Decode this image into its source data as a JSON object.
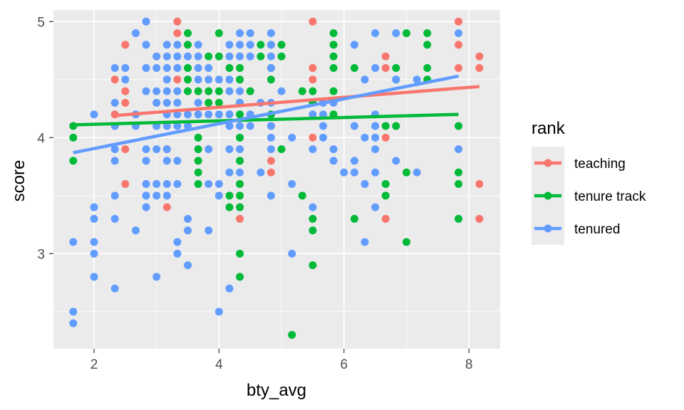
{
  "chart_data": {
    "type": "scatter",
    "xlabel": "bty_avg",
    "ylabel": "score",
    "xlim": [
      1.35,
      8.5
    ],
    "ylim": [
      2.18,
      5.1
    ],
    "x_ticks": [
      2,
      4,
      6,
      8
    ],
    "y_ticks": [
      3,
      4,
      5
    ],
    "grid": true,
    "legend": {
      "title": "rank",
      "position": "right"
    },
    "series": [
      {
        "name": "teaching",
        "color": "#F8766D",
        "points": [
          [
            2.333,
            4.5
          ],
          [
            2.5,
            4.4
          ],
          [
            2.5,
            4.3
          ],
          [
            2.5,
            4.8
          ],
          [
            2.333,
            4.2
          ],
          [
            2.5,
            3.9
          ],
          [
            2.5,
            3.6
          ],
          [
            3.333,
            5.0
          ],
          [
            3.333,
            4.9
          ],
          [
            3.167,
            3.9
          ],
          [
            3.167,
            3.4
          ],
          [
            3.0,
            4.7
          ],
          [
            3.0,
            4.3
          ],
          [
            3.333,
            4.5
          ],
          [
            4.333,
            3.3
          ],
          [
            4.833,
            4.1
          ],
          [
            4.833,
            3.8
          ],
          [
            4.833,
            3.7
          ],
          [
            5.5,
            5.0
          ],
          [
            5.5,
            4.6
          ],
          [
            5.5,
            4.5
          ],
          [
            5.5,
            4.0
          ],
          [
            6.667,
            4.7
          ],
          [
            6.667,
            4.6
          ],
          [
            6.667,
            4.0
          ],
          [
            6.667,
            3.3
          ],
          [
            7.833,
            5.0
          ],
          [
            7.833,
            4.8
          ],
          [
            7.833,
            4.6
          ],
          [
            8.167,
            4.7
          ],
          [
            8.167,
            4.6
          ],
          [
            8.167,
            3.6
          ],
          [
            8.167,
            3.3
          ]
        ],
        "trend": [
          [
            2.333,
            4.19
          ],
          [
            8.167,
            4.44
          ]
        ]
      },
      {
        "name": "tenure track",
        "color": "#00BA38",
        "points": [
          [
            1.667,
            4.1
          ],
          [
            1.667,
            4.0
          ],
          [
            1.667,
            3.8
          ],
          [
            3.5,
            4.9
          ],
          [
            3.5,
            4.8
          ],
          [
            3.5,
            4.6
          ],
          [
            3.5,
            4.5
          ],
          [
            3.5,
            4.4
          ],
          [
            3.667,
            4.4
          ],
          [
            3.667,
            4.0
          ],
          [
            3.667,
            3.9
          ],
          [
            3.667,
            3.8
          ],
          [
            3.667,
            3.7
          ],
          [
            3.667,
            3.6
          ],
          [
            3.833,
            4.7
          ],
          [
            3.833,
            4.4
          ],
          [
            3.833,
            4.3
          ],
          [
            4.0,
            4.9
          ],
          [
            4.0,
            4.7
          ],
          [
            4.0,
            4.4
          ],
          [
            4.0,
            4.3
          ],
          [
            4.167,
            4.6
          ],
          [
            4.167,
            3.5
          ],
          [
            4.167,
            3.4
          ],
          [
            4.333,
            4.6
          ],
          [
            4.333,
            4.5
          ],
          [
            4.333,
            4.3
          ],
          [
            4.333,
            4.2
          ],
          [
            4.333,
            4.0
          ],
          [
            4.333,
            3.8
          ],
          [
            4.333,
            3.6
          ],
          [
            4.333,
            3.5
          ],
          [
            4.333,
            3.4
          ],
          [
            4.333,
            3.0
          ],
          [
            4.333,
            2.8
          ],
          [
            4.5,
            4.4
          ],
          [
            4.667,
            4.8
          ],
          [
            4.667,
            4.7
          ],
          [
            4.833,
            4.8
          ],
          [
            4.833,
            4.6
          ],
          [
            4.833,
            4.5
          ],
          [
            4.833,
            4.2
          ],
          [
            5.0,
            4.8
          ],
          [
            5.0,
            4.7
          ],
          [
            5.0,
            3.9
          ],
          [
            5.333,
            4.4
          ],
          [
            5.333,
            3.5
          ],
          [
            5.5,
            4.4
          ],
          [
            5.5,
            4.3
          ],
          [
            5.5,
            3.3
          ],
          [
            5.5,
            3.2
          ],
          [
            5.5,
            2.9
          ],
          [
            5.167,
            2.3
          ],
          [
            5.833,
            4.9
          ],
          [
            5.833,
            4.8
          ],
          [
            5.833,
            4.7
          ],
          [
            5.833,
            4.6
          ],
          [
            5.833,
            4.4
          ],
          [
            5.833,
            4.2
          ],
          [
            6.167,
            4.6
          ],
          [
            6.167,
            3.3
          ],
          [
            6.667,
            4.1
          ],
          [
            6.667,
            3.6
          ],
          [
            6.667,
            3.5
          ],
          [
            6.833,
            4.6
          ],
          [
            6.833,
            4.5
          ],
          [
            6.833,
            4.1
          ],
          [
            7.0,
            4.9
          ],
          [
            7.0,
            3.7
          ],
          [
            7.0,
            3.1
          ],
          [
            7.333,
            4.9
          ],
          [
            7.333,
            4.8
          ],
          [
            7.333,
            4.6
          ],
          [
            7.333,
            4.5
          ],
          [
            7.833,
            4.1
          ],
          [
            7.833,
            3.7
          ],
          [
            7.833,
            3.6
          ],
          [
            7.833,
            3.3
          ]
        ],
        "trend": [
          [
            1.667,
            4.11
          ],
          [
            7.833,
            4.2
          ]
        ]
      },
      {
        "name": "tenured",
        "color": "#619CFF",
        "points": [
          [
            1.667,
            3.1
          ],
          [
            1.667,
            2.5
          ],
          [
            1.667,
            2.4
          ],
          [
            2.0,
            4.2
          ],
          [
            2.0,
            3.4
          ],
          [
            2.0,
            3.3
          ],
          [
            2.0,
            3.1
          ],
          [
            2.0,
            3.0
          ],
          [
            2.0,
            2.8
          ],
          [
            2.333,
            4.6
          ],
          [
            2.333,
            4.3
          ],
          [
            2.333,
            4.1
          ],
          [
            2.333,
            3.9
          ],
          [
            2.333,
            3.8
          ],
          [
            2.333,
            3.5
          ],
          [
            2.333,
            3.3
          ],
          [
            2.333,
            2.7
          ],
          [
            2.5,
            4.6
          ],
          [
            2.5,
            4.5
          ],
          [
            2.667,
            4.9
          ],
          [
            2.667,
            4.2
          ],
          [
            2.667,
            4.1
          ],
          [
            2.667,
            3.2
          ],
          [
            2.833,
            5.0
          ],
          [
            2.833,
            4.8
          ],
          [
            2.833,
            4.6
          ],
          [
            2.833,
            4.4
          ],
          [
            2.833,
            3.9
          ],
          [
            2.833,
            3.8
          ],
          [
            2.833,
            3.6
          ],
          [
            2.833,
            3.5
          ],
          [
            2.833,
            3.4
          ],
          [
            3.0,
            4.7
          ],
          [
            3.0,
            4.6
          ],
          [
            3.0,
            4.4
          ],
          [
            3.0,
            4.3
          ],
          [
            3.0,
            4.1
          ],
          [
            3.0,
            3.9
          ],
          [
            3.0,
            3.6
          ],
          [
            3.0,
            3.5
          ],
          [
            3.0,
            2.8
          ],
          [
            3.167,
            4.8
          ],
          [
            3.167,
            4.7
          ],
          [
            3.167,
            4.6
          ],
          [
            3.167,
            4.5
          ],
          [
            3.167,
            4.4
          ],
          [
            3.167,
            4.3
          ],
          [
            3.167,
            4.2
          ],
          [
            3.167,
            4.1
          ],
          [
            3.167,
            3.9
          ],
          [
            3.167,
            3.8
          ],
          [
            3.167,
            3.6
          ],
          [
            3.167,
            3.5
          ],
          [
            3.333,
            4.8
          ],
          [
            3.333,
            4.7
          ],
          [
            3.333,
            4.6
          ],
          [
            3.333,
            4.4
          ],
          [
            3.333,
            4.3
          ],
          [
            3.333,
            4.2
          ],
          [
            3.333,
            4.1
          ],
          [
            3.333,
            3.8
          ],
          [
            3.333,
            3.6
          ],
          [
            3.333,
            3.1
          ],
          [
            3.333,
            3.0
          ],
          [
            3.5,
            4.7
          ],
          [
            3.5,
            4.2
          ],
          [
            3.5,
            4.1
          ],
          [
            3.5,
            3.3
          ],
          [
            3.5,
            3.2
          ],
          [
            3.5,
            2.9
          ],
          [
            3.667,
            4.8
          ],
          [
            3.667,
            4.7
          ],
          [
            3.667,
            4.6
          ],
          [
            3.667,
            4.5
          ],
          [
            3.667,
            4.3
          ],
          [
            3.667,
            4.2
          ],
          [
            3.833,
            4.6
          ],
          [
            3.833,
            4.5
          ],
          [
            3.833,
            4.2
          ],
          [
            3.833,
            3.9
          ],
          [
            3.833,
            3.6
          ],
          [
            3.833,
            3.2
          ],
          [
            4.0,
            4.5
          ],
          [
            4.0,
            4.2
          ],
          [
            4.0,
            3.6
          ],
          [
            4.0,
            3.5
          ],
          [
            4.0,
            2.5
          ],
          [
            4.167,
            4.8
          ],
          [
            4.167,
            4.7
          ],
          [
            4.167,
            4.5
          ],
          [
            4.167,
            4.4
          ],
          [
            4.167,
            4.2
          ],
          [
            4.167,
            4.1
          ],
          [
            4.167,
            3.9
          ],
          [
            4.167,
            3.7
          ],
          [
            4.167,
            2.7
          ],
          [
            4.333,
            4.9
          ],
          [
            4.333,
            4.8
          ],
          [
            4.333,
            4.7
          ],
          [
            4.333,
            4.4
          ],
          [
            4.333,
            4.3
          ],
          [
            4.333,
            4.1
          ],
          [
            4.333,
            3.9
          ],
          [
            4.333,
            3.7
          ],
          [
            4.5,
            4.9
          ],
          [
            4.5,
            4.8
          ],
          [
            4.5,
            4.7
          ],
          [
            4.5,
            4.2
          ],
          [
            4.5,
            4.1
          ],
          [
            4.667,
            4.3
          ],
          [
            4.667,
            3.7
          ],
          [
            4.833,
            4.9
          ],
          [
            4.833,
            4.8
          ],
          [
            4.833,
            4.7
          ],
          [
            4.833,
            4.6
          ],
          [
            4.833,
            4.3
          ],
          [
            4.833,
            4.1
          ],
          [
            4.833,
            4.0
          ],
          [
            4.833,
            3.9
          ],
          [
            4.833,
            3.5
          ],
          [
            5.0,
            4.4
          ],
          [
            5.167,
            4.0
          ],
          [
            5.167,
            3.6
          ],
          [
            5.167,
            3.0
          ],
          [
            5.5,
            4.2
          ],
          [
            5.5,
            3.9
          ],
          [
            5.5,
            3.4
          ],
          [
            5.667,
            4.3
          ],
          [
            5.667,
            4.2
          ],
          [
            5.667,
            4.1
          ],
          [
            5.667,
            4.0
          ],
          [
            5.833,
            4.3
          ],
          [
            5.833,
            3.9
          ],
          [
            5.833,
            3.8
          ],
          [
            6.0,
            3.7
          ],
          [
            6.167,
            4.8
          ],
          [
            6.167,
            4.1
          ],
          [
            6.167,
            3.8
          ],
          [
            6.167,
            3.7
          ],
          [
            6.333,
            4.5
          ],
          [
            6.333,
            4.0
          ],
          [
            6.333,
            3.6
          ],
          [
            6.333,
            3.1
          ],
          [
            6.5,
            4.9
          ],
          [
            6.5,
            4.6
          ],
          [
            6.5,
            4.2
          ],
          [
            6.5,
            4.1
          ],
          [
            6.5,
            4.0
          ],
          [
            6.5,
            3.9
          ],
          [
            6.5,
            3.7
          ],
          [
            6.5,
            3.4
          ],
          [
            6.833,
            4.9
          ],
          [
            6.833,
            4.5
          ],
          [
            6.833,
            3.8
          ],
          [
            7.167,
            4.5
          ],
          [
            7.167,
            3.7
          ],
          [
            7.833,
            4.9
          ],
          [
            7.833,
            3.9
          ]
        ],
        "trend": [
          [
            1.667,
            3.87
          ],
          [
            7.833,
            4.53
          ]
        ]
      }
    ]
  }
}
